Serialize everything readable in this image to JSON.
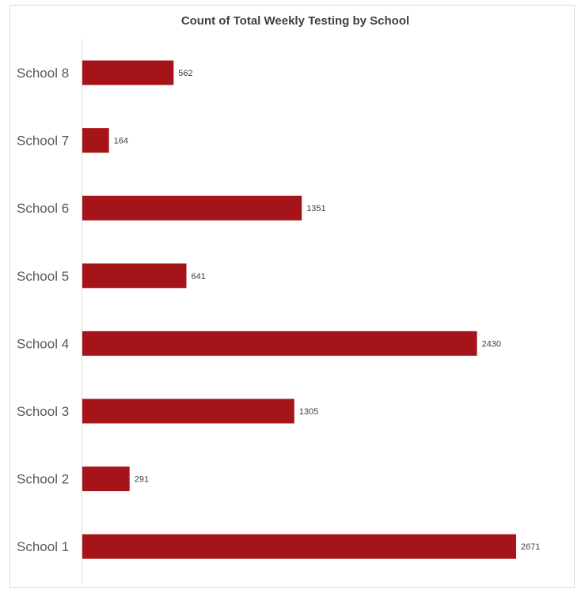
{
  "chart_data": {
    "type": "bar",
    "orientation": "horizontal",
    "title": "Count of Total Weekly Testing by School",
    "categories": [
      "School 8",
      "School 7",
      "School 6",
      "School 5",
      "School 4",
      "School 3",
      "School 2",
      "School 1"
    ],
    "values": [
      562,
      164,
      1351,
      641,
      2430,
      1305,
      291,
      2671
    ],
    "xlim": [
      0,
      2900
    ],
    "xlabel": "",
    "ylabel": "",
    "grid": false,
    "legend": "none",
    "data_labels": true,
    "bar_color": "#a51419"
  }
}
